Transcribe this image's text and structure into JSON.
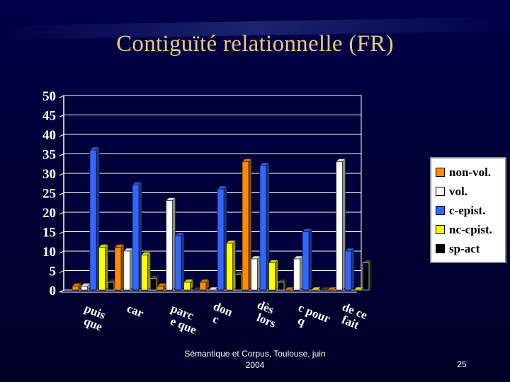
{
  "slide": {
    "title": "Contiguïté relationnelle (FR)",
    "footer_line1": "Sémantique et Corpus, Toulouse, juin",
    "footer_line2": "2004",
    "page_number": "25"
  },
  "chart_data": {
    "type": "bar",
    "title": "",
    "xlabel": "",
    "ylabel": "",
    "ylim": [
      0,
      50
    ],
    "yticks": [
      0,
      5,
      10,
      15,
      20,
      25,
      30,
      35,
      40,
      45,
      50
    ],
    "grid": true,
    "legend_position": "right",
    "categories": [
      "puisque",
      "car",
      "parce que",
      "donc",
      "dès lors",
      "c pourq",
      "de ce fait"
    ],
    "series": [
      {
        "name": "non-vol.",
        "color": "#ff8c00",
        "values": [
          1,
          11,
          1,
          2,
          33,
          0,
          0
        ]
      },
      {
        "name": "vol.",
        "color": "#ffffff",
        "values": [
          1,
          10,
          23,
          0,
          8,
          8,
          33
        ]
      },
      {
        "name": "c-epist.",
        "color": "#3366ff",
        "values": [
          36,
          27,
          14,
          26,
          32,
          15,
          10
        ]
      },
      {
        "name": "nc-cpist.",
        "color": "#ffff00",
        "values": [
          11,
          9,
          2,
          12,
          7,
          0,
          0
        ]
      },
      {
        "name": "sp-act",
        "color": "#000000",
        "values": [
          2,
          3,
          0,
          4,
          2,
          0,
          7
        ]
      }
    ],
    "category_label_lines": [
      [
        "puis",
        "que"
      ],
      [
        "car"
      ],
      [
        "parc",
        "e que"
      ],
      [
        "don",
        "c"
      ],
      [
        "dès",
        "lors"
      ],
      [
        "c pour",
        "q"
      ],
      [
        "de ce",
        "fait"
      ]
    ]
  }
}
